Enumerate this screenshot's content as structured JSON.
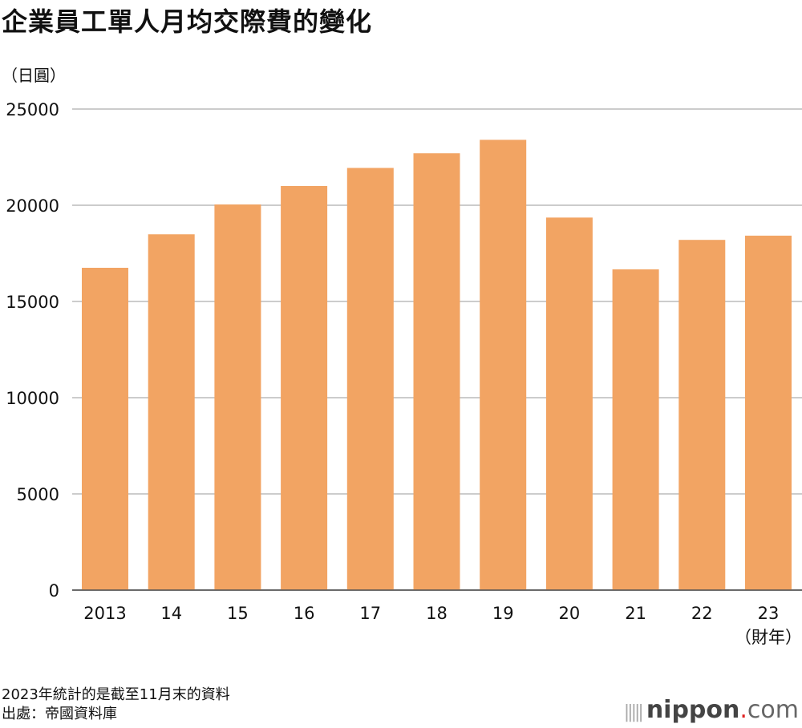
{
  "chart_data": {
    "type": "bar",
    "title": "企業員工單人月均交際費的變化",
    "ylabel": "（日圓）",
    "xlabel": "（財年）",
    "categories": [
      "2013",
      "14",
      "15",
      "16",
      "17",
      "18",
      "19",
      "20",
      "21",
      "22",
      "23"
    ],
    "values": [
      16750,
      18490,
      20040,
      21000,
      21940,
      22700,
      23400,
      19360,
      16670,
      18200,
      18420
    ],
    "ylim": [
      0,
      25000
    ],
    "yticks": [
      "0",
      "5000",
      "10000",
      "15000",
      "20000",
      "25000"
    ],
    "grid": true,
    "bar_color": "#f2a463"
  },
  "notes": [
    "2023年統計的是截至11月末的資料",
    "出處：帝國資料庫"
  ],
  "logo": {
    "name": "nippon",
    "dot": ".",
    "suffix": "com"
  }
}
